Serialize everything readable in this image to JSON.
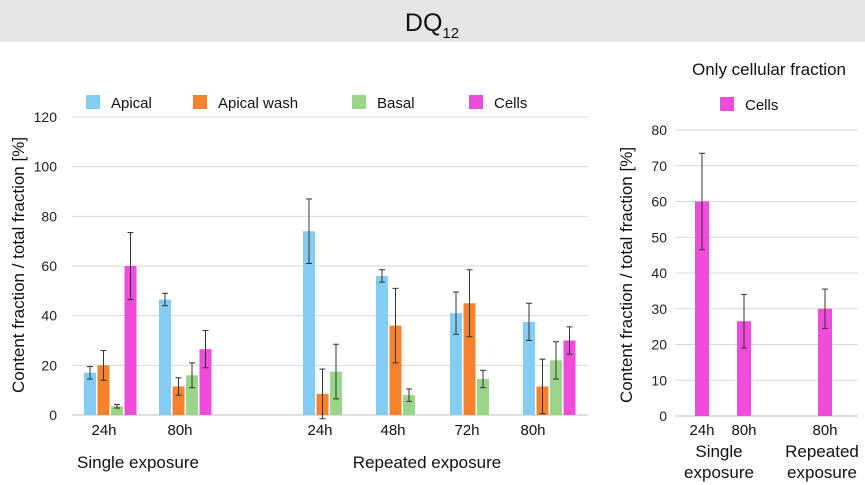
{
  "title": {
    "main": "DQ",
    "sub": "12"
  },
  "chart_data": [
    {
      "type": "bar",
      "ylabel": "Content fraction / total fraction [%]",
      "ylim": [
        0,
        120
      ],
      "yticks": [
        "0",
        "20",
        "40",
        "60",
        "80",
        "100",
        "120"
      ],
      "grid": true,
      "legend_position": "top",
      "series_names": [
        "Apical",
        "Apical wash",
        "Basal",
        "Cells"
      ],
      "colors": {
        "Apical": "#84cdf2",
        "Apical wash": "#f6822e",
        "Basal": "#9bd58a",
        "Cells": "#ef4cdb"
      },
      "groups": [
        {
          "label": "Single exposure",
          "categories": [
            {
              "label": "24h",
              "bars": [
                {
                  "series": "Apical",
                  "value": 17,
                  "err": 2.5
                },
                {
                  "series": "Apical wash",
                  "value": 20,
                  "err": 6
                },
                {
                  "series": "Basal",
                  "value": 3.5,
                  "err": 0.7
                },
                {
                  "series": "Cells",
                  "value": 60,
                  "err": 13.5
                }
              ]
            },
            {
              "label": "80h",
              "bars": [
                {
                  "series": "Apical",
                  "value": 46.5,
                  "err": 2.5
                },
                {
                  "series": "Apical wash",
                  "value": 11.5,
                  "err": 3.5
                },
                {
                  "series": "Basal",
                  "value": 16,
                  "err": 5
                },
                {
                  "series": "Cells",
                  "value": 26.5,
                  "err": 7.5
                }
              ]
            }
          ]
        },
        {
          "label": "Repeated exposure",
          "categories": [
            {
              "label": "24h",
              "bars": [
                {
                  "series": "Apical",
                  "value": 74,
                  "err": 13
                },
                {
                  "series": "Apical wash",
                  "value": 8.5,
                  "err": 10
                },
                {
                  "series": "Basal",
                  "value": 17.5,
                  "err": 11
                }
              ]
            },
            {
              "label": "48h",
              "bars": [
                {
                  "series": "Apical",
                  "value": 56,
                  "err": 2.5
                },
                {
                  "series": "Apical wash",
                  "value": 36,
                  "err": 15
                },
                {
                  "series": "Basal",
                  "value": 8,
                  "err": 2.5
                }
              ]
            },
            {
              "label": "72h",
              "bars": [
                {
                  "series": "Apical",
                  "value": 41,
                  "err": 8.5
                },
                {
                  "series": "Apical wash",
                  "value": 45,
                  "err": 13.5
                },
                {
                  "series": "Basal",
                  "value": 14.5,
                  "err": 3.5
                }
              ]
            },
            {
              "label": "80h",
              "bars": [
                {
                  "series": "Apical",
                  "value": 37.5,
                  "err": 7.5
                },
                {
                  "series": "Apical wash",
                  "value": 11.5,
                  "err": 11
                },
                {
                  "series": "Basal",
                  "value": 22,
                  "err": 7.5
                },
                {
                  "series": "Cells",
                  "value": 30,
                  "err": 5.5
                }
              ]
            }
          ]
        }
      ]
    },
    {
      "type": "bar",
      "title": "Only cellular fraction",
      "ylabel": "Content fraction / total fraction [%]",
      "ylim": [
        0,
        80
      ],
      "yticks": [
        "0",
        "10",
        "20",
        "30",
        "40",
        "50",
        "60",
        "70",
        "80"
      ],
      "grid": true,
      "legend": [
        "Cells"
      ],
      "color": "#ef4cdb",
      "bars": [
        {
          "label": "24h",
          "value": 60,
          "err": 13.5
        },
        {
          "label": "80h",
          "value": 26.5,
          "err": 7.5
        },
        {
          "label": "80h",
          "value": 30,
          "err": 5.5
        }
      ],
      "group_labels": [
        {
          "line1": "Single",
          "line2": "exposure"
        },
        {
          "line1": "Repeated",
          "line2": "exposure"
        }
      ]
    }
  ]
}
